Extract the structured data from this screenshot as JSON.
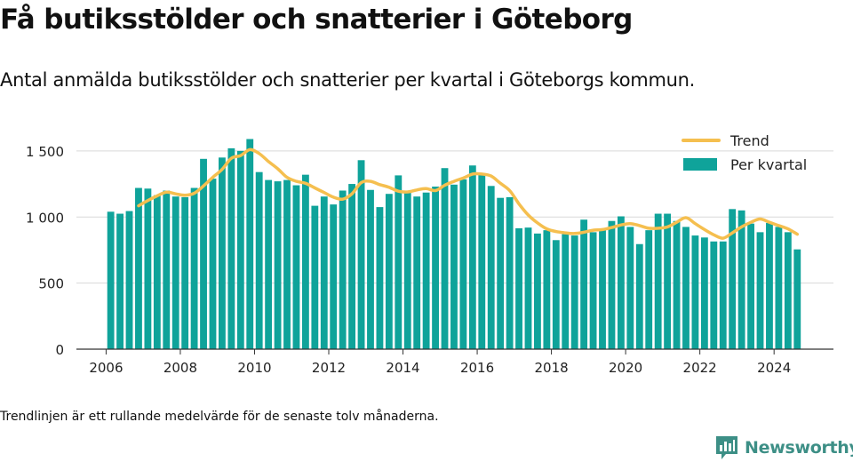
{
  "header": {
    "title": "Få butiksstölder och snatterier i Göteborg",
    "subtitle": "Antal anmälda butiksstölder och snatterier per kvartal i Göteborgs kommun."
  },
  "footer": {
    "note": "Trendlinjen är ett rullande medelvärde för de senaste tolv månaderna.",
    "brand": "Newsworthy"
  },
  "colors": {
    "bar": "#0fa39a",
    "trend": "#f5bf4f",
    "grid": "#d9d9d9",
    "axis": "#333333",
    "brand": "#3d8f86"
  },
  "chart_data": {
    "type": "bar",
    "title": "",
    "xlabel": "",
    "ylabel": "",
    "ylim": [
      0,
      1600
    ],
    "xlim": [
      2005.2,
      2025.6
    ],
    "yticks": [
      0,
      500,
      1000,
      1500
    ],
    "ytick_labels": [
      "0",
      "500",
      "1 000",
      "1 500"
    ],
    "xticks": [
      2006,
      2008,
      2010,
      2012,
      2014,
      2016,
      2018,
      2020,
      2022,
      2024
    ],
    "xtick_labels": [
      "2006",
      "2008",
      "2010",
      "2012",
      "2014",
      "2016",
      "2018",
      "2020",
      "2022",
      "2024"
    ],
    "grid": true,
    "legend_position": "top-right",
    "start_quarter": "2006 Q1",
    "series": [
      {
        "name": "Per kvartal",
        "type": "bar",
        "values": [
          1040,
          1025,
          1045,
          1220,
          1215,
          1165,
          1200,
          1155,
          1150,
          1220,
          1440,
          1290,
          1450,
          1520,
          1500,
          1590,
          1340,
          1280,
          1270,
          1280,
          1240,
          1320,
          1085,
          1155,
          1095,
          1200,
          1250,
          1430,
          1205,
          1075,
          1175,
          1315,
          1200,
          1155,
          1185,
          1230,
          1370,
          1245,
          1285,
          1390,
          1320,
          1235,
          1145,
          1150,
          915,
          920,
          875,
          900,
          825,
          870,
          860,
          980,
          885,
          905,
          970,
          1005,
          925,
          795,
          900,
          1025,
          1025,
          970,
          925,
          860,
          845,
          815,
          815,
          1060,
          1050,
          950,
          885,
          955,
          925,
          885,
          755
        ]
      },
      {
        "name": "Trend",
        "type": "line",
        "values": [
          null,
          null,
          null,
          1085,
          1125,
          1160,
          1188,
          1175,
          1165,
          1180,
          1235,
          1300,
          1360,
          1445,
          1465,
          1510,
          1480,
          1420,
          1365,
          1300,
          1270,
          1255,
          1220,
          1185,
          1150,
          1135,
          1175,
          1260,
          1270,
          1245,
          1225,
          1195,
          1190,
          1205,
          1215,
          1200,
          1240,
          1270,
          1295,
          1325,
          1325,
          1310,
          1255,
          1200,
          1100,
          1015,
          955,
          910,
          890,
          880,
          875,
          885,
          900,
          905,
          920,
          940,
          950,
          935,
          915,
          915,
          925,
          960,
          995,
          950,
          905,
          865,
          840,
          880,
          925,
          960,
          985,
          960,
          935,
          910,
          870
        ]
      }
    ]
  }
}
